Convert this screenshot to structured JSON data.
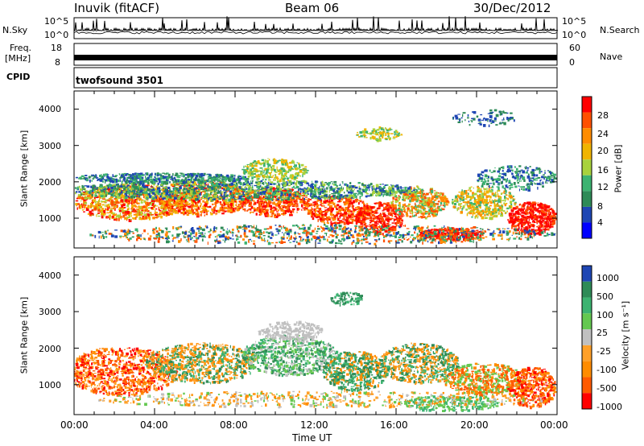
{
  "header": {
    "station": "Inuvik (fitACF)",
    "beam": "Beam 06",
    "date": "30/Dec/2012"
  },
  "strip_nsky": {
    "left_label": "N.Sky",
    "left_ticks": [
      "10^5",
      "10^0"
    ],
    "right_label": "N.Search",
    "right_ticks": [
      "10^5",
      "10^0"
    ]
  },
  "strip_freq": {
    "left_label_1": "Freq.",
    "left_label_2": "[MHz]",
    "left_ticks": [
      "18",
      "8"
    ],
    "right_label": "Nave",
    "right_ticks": [
      "60",
      "0"
    ]
  },
  "strip_cpid": {
    "left_label": "CPID",
    "value": "twofsound 3501"
  },
  "x_ticks": [
    "00:00",
    "04:00",
    "08:00",
    "12:00",
    "16:00",
    "20:00",
    "00:00"
  ],
  "x_title": "Time UT",
  "colors": {
    "power": [
      "#0000ff",
      "#1e46b4",
      "#2e8b57",
      "#3cb371",
      "#a8d23c",
      "#f0b400",
      "#ff8c00",
      "#ff5000",
      "#ff0000"
    ],
    "velocity": [
      "#1e46b4",
      "#2e8b57",
      "#3cb371",
      "#64c850",
      "#c0c0c0",
      "#ffa028",
      "#ff8c00",
      "#ff5a00",
      "#ff0000"
    ]
  },
  "chart_data": [
    {
      "type": "heatmap",
      "name": "power",
      "x_range_hours": [
        0,
        24
      ],
      "ylabel": "Slant Range [km]",
      "yticks": [
        "1000",
        "2000",
        "3000",
        "4000"
      ],
      "ylim": [
        180,
        4500
      ],
      "colorbar_title": "Power [dB]",
      "colorbar_ticks": [
        "4",
        "8",
        "12",
        "16",
        "20",
        "24",
        "28"
      ],
      "colorbar_range": [
        0,
        30
      ]
    },
    {
      "type": "heatmap",
      "name": "velocity",
      "x_range_hours": [
        0,
        24
      ],
      "ylabel": "Slant Range [km]",
      "yticks": [
        "1000",
        "2000",
        "3000",
        "4000"
      ],
      "ylim": [
        180,
        4500
      ],
      "colorbar_title": "Velocity [m s⁻¹]",
      "colorbar_ticks": [
        "1000",
        "500",
        "100",
        "25",
        "-25",
        "-100",
        "-500",
        "-1000"
      ]
    }
  ]
}
